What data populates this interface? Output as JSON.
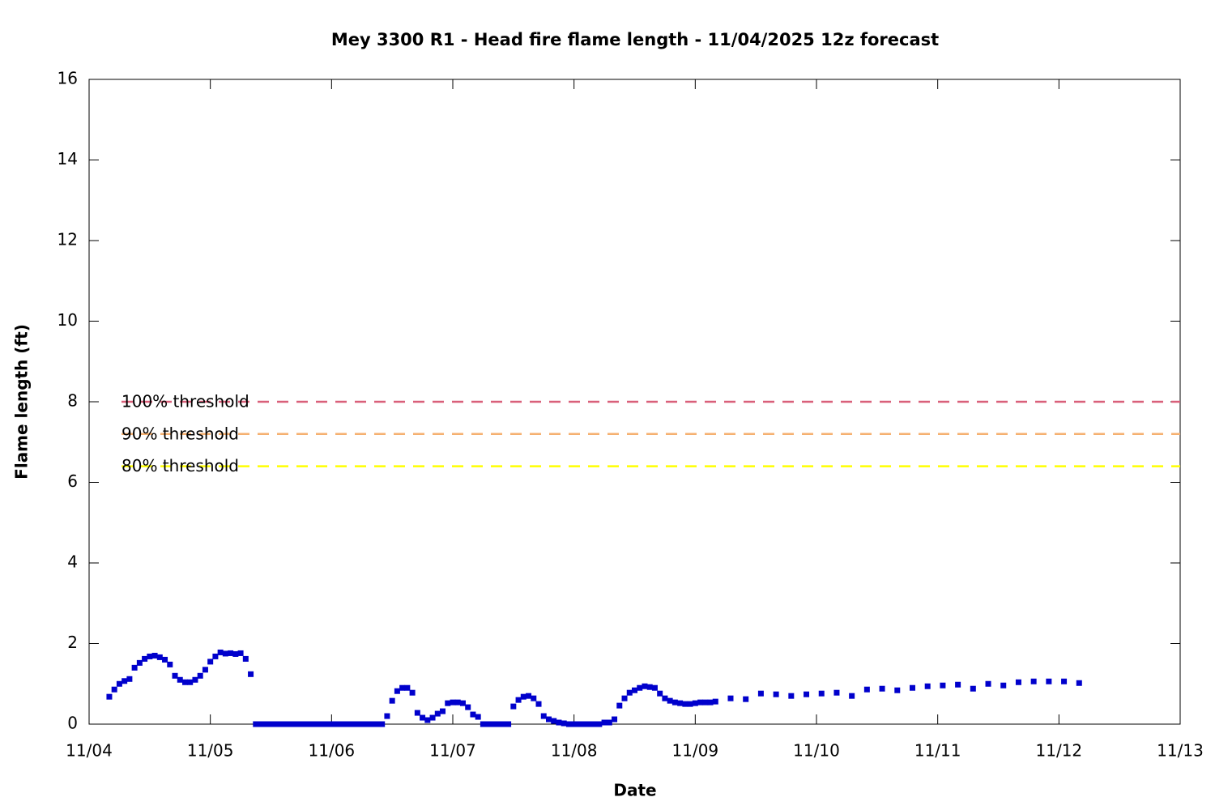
{
  "chart_data": {
    "type": "scatter",
    "title": "Mey 3300 R1 - Head fire flame length - 11/04/2025 12z forecast",
    "xlabel": "Date",
    "ylabel": "Flame length (ft)",
    "color": "#0000cc",
    "x": [
      4,
      5,
      6,
      7,
      8,
      9,
      10,
      11,
      12,
      13,
      14,
      15,
      16,
      17,
      18,
      19,
      20,
      21,
      22,
      23,
      24,
      25,
      26,
      27,
      28,
      29,
      30,
      31,
      32,
      33,
      34,
      35,
      36,
      37,
      38,
      39,
      40,
      41,
      42,
      43,
      44,
      45,
      46,
      47,
      48,
      49,
      50,
      51,
      52,
      53,
      54,
      55,
      56,
      57,
      58,
      59,
      60,
      61,
      62,
      63,
      64,
      65,
      66,
      67,
      68,
      69,
      70,
      71,
      72,
      73,
      74,
      75,
      76,
      77,
      78,
      79,
      80,
      81,
      82,
      83,
      84,
      85,
      86,
      87,
      88,
      89,
      90,
      91,
      92,
      93,
      94,
      95,
      96,
      97,
      98,
      99,
      100,
      101,
      102,
      103,
      104,
      105,
      106,
      107,
      108,
      109,
      110,
      111,
      112,
      113,
      114,
      115,
      116,
      117,
      118,
      119,
      120,
      121,
      122,
      123,
      124,
      127,
      130,
      133,
      136,
      139,
      142,
      145,
      148,
      151,
      154,
      157,
      160,
      163,
      166,
      169,
      172,
      175,
      178,
      181,
      184,
      187,
      190,
      193,
      196
    ],
    "values": [
      0.68,
      0.86,
      1.0,
      1.07,
      1.12,
      1.4,
      1.52,
      1.62,
      1.68,
      1.7,
      1.66,
      1.6,
      1.48,
      1.2,
      1.1,
      1.04,
      1.04,
      1.1,
      1.2,
      1.35,
      1.55,
      1.68,
      1.78,
      1.75,
      1.76,
      1.74,
      1.76,
      1.62,
      1.24,
      0,
      0,
      0,
      0,
      0,
      0,
      0,
      0,
      0,
      0,
      0,
      0,
      0,
      0,
      0,
      0,
      0,
      0,
      0,
      0,
      0,
      0,
      0,
      0,
      0,
      0,
      0.2,
      0.58,
      0.82,
      0.9,
      0.9,
      0.78,
      0.28,
      0.16,
      0.1,
      0.16,
      0.26,
      0.32,
      0.52,
      0.54,
      0.54,
      0.52,
      0.42,
      0.24,
      0.18,
      0,
      0,
      0,
      0,
      0,
      0,
      0.44,
      0.6,
      0.68,
      0.7,
      0.64,
      0.5,
      0.2,
      0.12,
      0.08,
      0.04,
      0.02,
      0,
      0,
      0,
      0,
      0,
      0,
      0,
      0.04,
      0.04,
      0.12,
      0.46,
      0.64,
      0.78,
      0.84,
      0.9,
      0.94,
      0.92,
      0.9,
      0.76,
      0.64,
      0.58,
      0.54,
      0.52,
      0.5,
      0.5,
      0.52,
      0.54,
      0.54,
      0.54,
      0.56,
      0.64,
      0.62,
      0.76,
      0.74,
      0.7,
      0.74,
      0.76,
      0.78,
      0.7,
      0.86,
      0.88,
      0.84,
      0.9,
      0.94,
      0.96,
      0.98,
      0.88,
      1.0,
      0.96,
      1.04,
      1.06,
      1.06,
      1.06,
      1.02
    ],
    "thresholds": [
      {
        "name": "100% threshold",
        "value": 8,
        "color": "#d9607a"
      },
      {
        "name": "90% threshold",
        "value": 7.2,
        "color": "#f5b070"
      },
      {
        "name": "80% threshold",
        "value": 6.4,
        "color": "#ffff00"
      }
    ],
    "xlim": [
      0,
      216
    ],
    "xticks": [
      {
        "value": 0,
        "label": "11/04"
      },
      {
        "value": 24,
        "label": "11/05"
      },
      {
        "value": 48,
        "label": "11/06"
      },
      {
        "value": 72,
        "label": "11/07"
      },
      {
        "value": 96,
        "label": "11/08"
      },
      {
        "value": 120,
        "label": "11/09"
      },
      {
        "value": 144,
        "label": "11/10"
      },
      {
        "value": 168,
        "label": "11/11"
      },
      {
        "value": 192,
        "label": "11/12"
      },
      {
        "value": 216,
        "label": "11/13"
      }
    ],
    "ylim": [
      0,
      16
    ],
    "yticks": [
      0,
      2,
      4,
      6,
      8,
      10,
      12,
      14,
      16
    ],
    "grid": false
  }
}
